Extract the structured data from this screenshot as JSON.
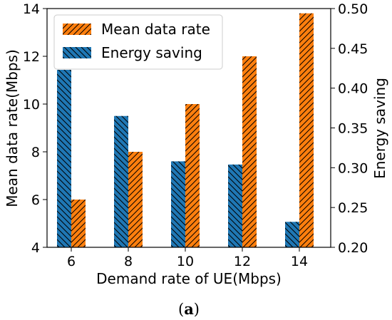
{
  "chart_data": {
    "type": "bar",
    "categories": [
      "6",
      "8",
      "10",
      "12",
      "14"
    ],
    "xlabel": "Demand rate of UE(Mbps)",
    "series": [
      {
        "name": "Energy saving",
        "axis": "right",
        "color": "#1f77b4",
        "hatch": "backslash",
        "values": [
          0.423,
          0.365,
          0.308,
          0.304,
          0.232
        ]
      },
      {
        "name": "Mean data rate",
        "axis": "left",
        "color": "#ff7f0e",
        "hatch": "slash",
        "values": [
          6,
          8,
          10,
          12,
          13.8
        ]
      }
    ],
    "left_axis": {
      "label": "Mean data rate(Mbps)",
      "ylim": [
        4,
        14
      ],
      "ticks": [
        "4",
        "6",
        "8",
        "10",
        "12",
        "14"
      ]
    },
    "right_axis": {
      "label": "Energy saving",
      "ylim": [
        0.2,
        0.5
      ],
      "ticks": [
        "0.20",
        "0.25",
        "0.30",
        "0.35",
        "0.40",
        "0.45",
        "0.50"
      ]
    },
    "legend": {
      "placement": "upper-left",
      "entries": [
        "Mean data rate",
        "Energy saving"
      ]
    },
    "grid": false
  },
  "caption": {
    "open": "(",
    "letter": "a",
    "close": ")"
  }
}
